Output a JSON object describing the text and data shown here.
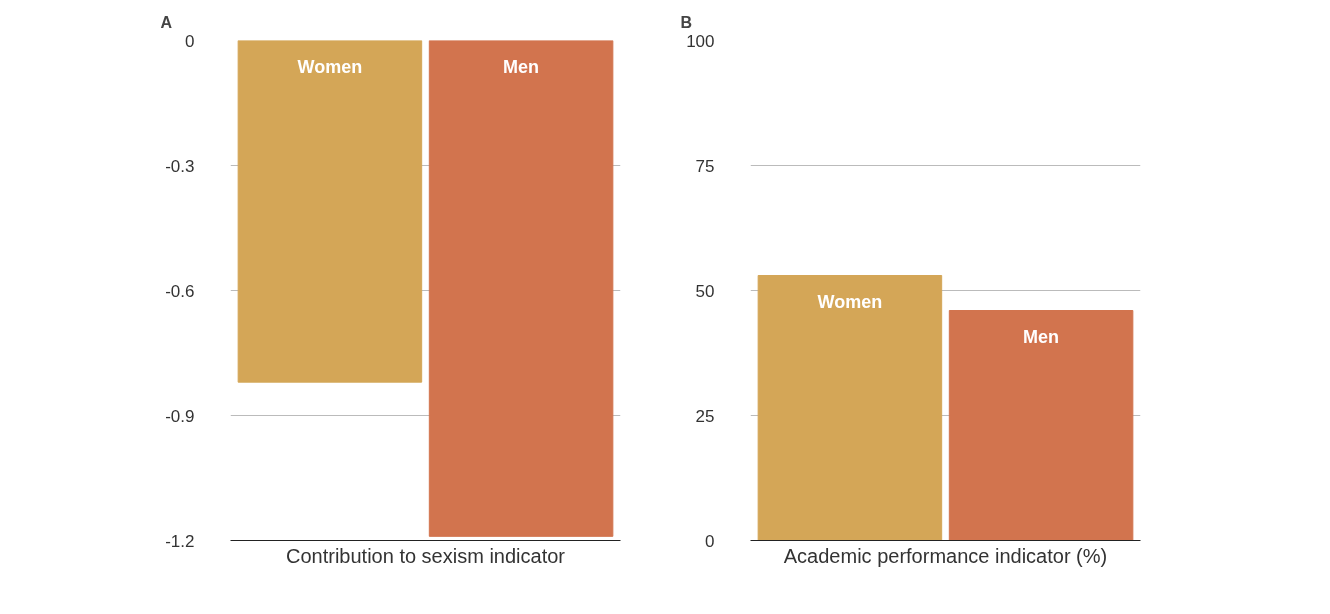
{
  "chart_data": [
    {
      "type": "bar",
      "title": "A",
      "xlabel": "Contribution to sexism indicator",
      "categories": [
        "Women",
        "Men"
      ],
      "values": [
        -0.82,
        -1.19
      ],
      "colors": [
        "#d4a657",
        "#d2744e"
      ],
      "ylim": [
        -1.2,
        0
      ],
      "yticks": [
        0,
        -0.3,
        -0.6,
        -0.9,
        -1.2
      ],
      "grid": "y",
      "tick_labels": "y"
    },
    {
      "type": "bar",
      "title": "B",
      "xlabel": "Academic performance indicator (%)",
      "categories": [
        "Women",
        "Men"
      ],
      "values": [
        53,
        46
      ],
      "colors": [
        "#d4a657",
        "#d2744e"
      ],
      "ylim": [
        0,
        100
      ],
      "yticks": [
        0,
        25,
        50,
        75,
        100
      ],
      "grid": "y",
      "tick_labels": "y"
    }
  ]
}
